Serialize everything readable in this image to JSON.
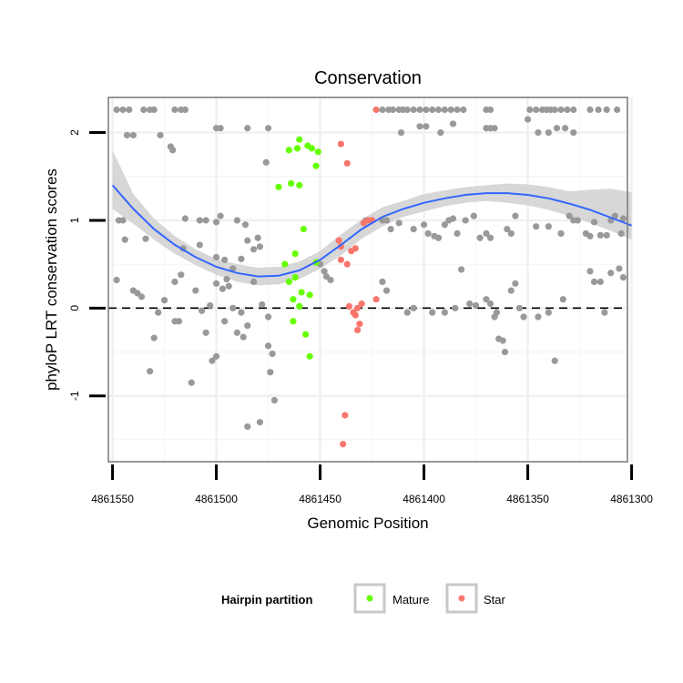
{
  "chart_data": {
    "type": "scatter",
    "title": "Conservation",
    "xlabel": "Genomic Position",
    "ylabel": "phyloP LRT conservation scores",
    "x_reversed": true,
    "xlim": [
      4861552,
      4861302
    ],
    "ylim": [
      -1.75,
      2.4
    ],
    "x_ticks": [
      4861550,
      4861500,
      4861450,
      4861400,
      4861350,
      4861300
    ],
    "x_tick_labels": [
      "4861550",
      "4861500",
      "4861450",
      "4861400",
      "4861350",
      "4861300"
    ],
    "y_ticks": [
      -1,
      0,
      1,
      2
    ],
    "y_tick_labels": [
      "-1",
      "0",
      "1",
      "2"
    ],
    "grid": true,
    "hline": {
      "y": 0,
      "style": "dashed",
      "color": "#000000"
    },
    "legend": {
      "title": "Hairpin partition",
      "position": "bottom",
      "entries": [
        {
          "name": "Mature",
          "color": "#66ff00"
        },
        {
          "name": "Star",
          "color": "#f8766d"
        }
      ]
    },
    "colors": {
      "other": "#999999",
      "mature": "#66ff00",
      "star": "#f8766d",
      "smooth": "#3366ff",
      "band": "#d3d3d3"
    },
    "series": [
      {
        "group": "other",
        "points": [
          [
            4861548,
            2.26
          ],
          [
            4861545,
            2.26
          ],
          [
            4861542,
            2.26
          ],
          [
            4861535,
            2.26
          ],
          [
            4861532,
            2.26
          ],
          [
            4861530,
            2.26
          ],
          [
            4861520,
            2.26
          ],
          [
            4861517,
            2.26
          ],
          [
            4861515,
            2.26
          ],
          [
            4861543,
            1.97
          ],
          [
            4861540,
            1.97
          ],
          [
            4861527,
            1.97
          ],
          [
            4861500,
            2.05
          ],
          [
            4861498,
            2.05
          ],
          [
            4861485,
            2.05
          ],
          [
            4861475,
            2.05
          ],
          [
            4861522,
            1.84
          ],
          [
            4861521,
            1.8
          ],
          [
            4861476,
            1.66
          ],
          [
            4861547,
            1.0
          ],
          [
            4861545,
            1.0
          ],
          [
            4861544,
            0.78
          ],
          [
            4861534,
            0.79
          ],
          [
            4861515,
            1.02
          ],
          [
            4861508,
            1.0
          ],
          [
            4861505,
            1.0
          ],
          [
            4861500,
            0.98
          ],
          [
            4861498,
            1.05
          ],
          [
            4861490,
            1.0
          ],
          [
            4861486,
            0.95
          ],
          [
            4861485,
            0.77
          ],
          [
            4861482,
            0.67
          ],
          [
            4861480,
            0.8
          ],
          [
            4861479,
            0.7
          ],
          [
            4861508,
            0.72
          ],
          [
            4861516,
            0.68
          ],
          [
            4861500,
            0.58
          ],
          [
            4861496,
            0.55
          ],
          [
            4861492,
            0.45
          ],
          [
            4861488,
            0.56
          ],
          [
            4861548,
            0.32
          ],
          [
            4861540,
            0.2
          ],
          [
            4861538,
            0.17
          ],
          [
            4861536,
            0.13
          ],
          [
            4861528,
            -0.05
          ],
          [
            4861525,
            0.09
          ],
          [
            4861520,
            0.3
          ],
          [
            4861517,
            0.38
          ],
          [
            4861510,
            0.2
          ],
          [
            4861507,
            -0.03
          ],
          [
            4861503,
            0.03
          ],
          [
            4861500,
            0.28
          ],
          [
            4861497,
            0.22
          ],
          [
            4861495,
            0.33
          ],
          [
            4861494,
            0.25
          ],
          [
            4861492,
            0.0
          ],
          [
            4861488,
            -0.05
          ],
          [
            4861485,
            -0.2
          ],
          [
            4861482,
            0.3
          ],
          [
            4861478,
            0.04
          ],
          [
            4861475,
            -0.1
          ],
          [
            4861530,
            -0.34
          ],
          [
            4861532,
            -0.72
          ],
          [
            4861520,
            -0.15
          ],
          [
            4861518,
            -0.15
          ],
          [
            4861505,
            -0.28
          ],
          [
            4861502,
            -0.6
          ],
          [
            4861500,
            -0.55
          ],
          [
            4861496,
            -0.15
          ],
          [
            4861512,
            -0.85
          ],
          [
            4861490,
            -0.28
          ],
          [
            4861487,
            -0.33
          ],
          [
            4861485,
            -1.35
          ],
          [
            4861479,
            -1.3
          ],
          [
            4861475,
            -0.43
          ],
          [
            4861474,
            -0.73
          ],
          [
            4861473,
            -0.52
          ],
          [
            4861472,
            -1.05
          ],
          [
            4861450,
            0.5
          ],
          [
            4861448,
            0.42
          ],
          [
            4861447,
            0.36
          ],
          [
            4861445,
            0.32
          ],
          [
            4861420,
            2.26
          ],
          [
            4861417,
            2.26
          ],
          [
            4861415,
            2.26
          ],
          [
            4861412,
            2.26
          ],
          [
            4861410,
            2.26
          ],
          [
            4861408,
            2.26
          ],
          [
            4861405,
            2.26
          ],
          [
            4861402,
            2.26
          ],
          [
            4861399,
            2.26
          ],
          [
            4861396,
            2.26
          ],
          [
            4861393,
            2.26
          ],
          [
            4861390,
            2.26
          ],
          [
            4861387,
            2.26
          ],
          [
            4861384,
            2.26
          ],
          [
            4861381,
            2.26
          ],
          [
            4861370,
            2.26
          ],
          [
            4861368,
            2.26
          ],
          [
            4861349,
            2.26
          ],
          [
            4861346,
            2.26
          ],
          [
            4861343,
            2.26
          ],
          [
            4861341,
            2.26
          ],
          [
            4861339,
            2.26
          ],
          [
            4861337,
            2.26
          ],
          [
            4861334,
            2.26
          ],
          [
            4861331,
            2.26
          ],
          [
            4861328,
            2.26
          ],
          [
            4861320,
            2.26
          ],
          [
            4861316,
            2.26
          ],
          [
            4861312,
            2.26
          ],
          [
            4861307,
            2.26
          ],
          [
            4861411,
            2.0
          ],
          [
            4861402,
            2.07
          ],
          [
            4861399,
            2.07
          ],
          [
            4861392,
            2.0
          ],
          [
            4861386,
            2.1
          ],
          [
            4861370,
            2.05
          ],
          [
            4861368,
            2.05
          ],
          [
            4861366,
            2.05
          ],
          [
            4861350,
            2.15
          ],
          [
            4861345,
            2.0
          ],
          [
            4861340,
            2.0
          ],
          [
            4861336,
            2.05
          ],
          [
            4861332,
            2.05
          ],
          [
            4861328,
            2.0
          ],
          [
            4861428,
            1.0
          ],
          [
            4861425,
            1.0
          ],
          [
            4861420,
            1.0
          ],
          [
            4861418,
            1.0
          ],
          [
            4861416,
            0.9
          ],
          [
            4861412,
            0.97
          ],
          [
            4861405,
            0.9
          ],
          [
            4861400,
            0.95
          ],
          [
            4861398,
            0.85
          ],
          [
            4861395,
            0.82
          ],
          [
            4861393,
            0.8
          ],
          [
            4861390,
            0.95
          ],
          [
            4861388,
            1.0
          ],
          [
            4861386,
            1.02
          ],
          [
            4861384,
            0.85
          ],
          [
            4861380,
            1.0
          ],
          [
            4861376,
            1.05
          ],
          [
            4861373,
            0.8
          ],
          [
            4861370,
            0.85
          ],
          [
            4861368,
            0.8
          ],
          [
            4861360,
            0.9
          ],
          [
            4861358,
            0.85
          ],
          [
            4861356,
            1.05
          ],
          [
            4861346,
            0.93
          ],
          [
            4861340,
            0.93
          ],
          [
            4861334,
            0.85
          ],
          [
            4861330,
            1.05
          ],
          [
            4861328,
            1.0
          ],
          [
            4861326,
            1.0
          ],
          [
            4861322,
            0.85
          ],
          [
            4861320,
            0.82
          ],
          [
            4861318,
            0.98
          ],
          [
            4861315,
            0.83
          ],
          [
            4861312,
            0.83
          ],
          [
            4861310,
            1.0
          ],
          [
            4861308,
            1.05
          ],
          [
            4861305,
            0.85
          ],
          [
            4861304,
            1.02
          ],
          [
            4861306,
            0.45
          ],
          [
            4861304,
            0.35
          ],
          [
            4861310,
            0.4
          ],
          [
            4861420,
            0.3
          ],
          [
            4861418,
            0.2
          ],
          [
            4861408,
            -0.05
          ],
          [
            4861405,
            0.0
          ],
          [
            4861396,
            -0.05
          ],
          [
            4861390,
            -0.05
          ],
          [
            4861385,
            0.0
          ],
          [
            4861382,
            0.44
          ],
          [
            4861378,
            0.05
          ],
          [
            4861375,
            0.03
          ],
          [
            4861370,
            0.1
          ],
          [
            4861368,
            0.05
          ],
          [
            4861366,
            -0.1
          ],
          [
            4861365,
            -0.05
          ],
          [
            4861364,
            -0.35
          ],
          [
            4861362,
            -0.37
          ],
          [
            4861361,
            -0.5
          ],
          [
            4861358,
            0.2
          ],
          [
            4861356,
            0.28
          ],
          [
            4861354,
            0.0
          ],
          [
            4861352,
            -0.1
          ],
          [
            4861345,
            -0.1
          ],
          [
            4861340,
            -0.05
          ],
          [
            4861337,
            -0.6
          ],
          [
            4861333,
            0.1
          ],
          [
            4861320,
            0.42
          ],
          [
            4861318,
            0.3
          ],
          [
            4861315,
            0.3
          ],
          [
            4861313,
            -0.05
          ]
        ]
      },
      {
        "group": "mature",
        "points": [
          [
            4861464,
            1.42
          ],
          [
            4861465,
            1.8
          ],
          [
            4861461,
            1.82
          ],
          [
            4861460,
            1.92
          ],
          [
            4861456,
            1.85
          ],
          [
            4861454,
            1.82
          ],
          [
            4861452,
            1.62
          ],
          [
            4861451,
            1.78
          ],
          [
            4861460,
            1.4
          ],
          [
            4861470,
            1.38
          ],
          [
            4861458,
            0.9
          ],
          [
            4861462,
            0.62
          ],
          [
            4861467,
            0.5
          ],
          [
            4861465,
            0.3
          ],
          [
            4861462,
            0.35
          ],
          [
            4861463,
            0.1
          ],
          [
            4861459,
            0.18
          ],
          [
            4861455,
            0.15
          ],
          [
            4861452,
            0.52
          ],
          [
            4861460,
            0.02
          ],
          [
            4861463,
            -0.15
          ],
          [
            4861457,
            -0.3
          ],
          [
            4861455,
            -0.55
          ]
        ]
      },
      {
        "group": "star",
        "points": [
          [
            4861423,
            2.26
          ],
          [
            4861440,
            1.87
          ],
          [
            4861437,
            1.65
          ],
          [
            4861441,
            0.77
          ],
          [
            4861440,
            0.7
          ],
          [
            4861435,
            0.65
          ],
          [
            4861433,
            0.68
          ],
          [
            4861437,
            0.5
          ],
          [
            4861440,
            0.55
          ],
          [
            4861429,
            0.97
          ],
          [
            4861427,
            1.0
          ],
          [
            4861425,
            1.0
          ],
          [
            4861436,
            0.02
          ],
          [
            4861434,
            -0.05
          ],
          [
            4861433,
            -0.08
          ],
          [
            4861432,
            0.0
          ],
          [
            4861430,
            0.05
          ],
          [
            4861423,
            0.1
          ],
          [
            4861431,
            -0.18
          ],
          [
            4861432,
            -0.25
          ],
          [
            4861438,
            -1.22
          ],
          [
            4861439,
            -1.55
          ]
        ]
      }
    ],
    "smooth": {
      "x": [
        4861550,
        4861540,
        4861530,
        4861520,
        4861510,
        4861500,
        4861490,
        4861480,
        4861470,
        4861460,
        4861450,
        4861440,
        4861430,
        4861420,
        4861410,
        4861400,
        4861390,
        4861380,
        4861370,
        4861360,
        4861350,
        4861340,
        4861330,
        4861320,
        4861310,
        4861300
      ],
      "y": [
        1.4,
        1.13,
        0.9,
        0.72,
        0.58,
        0.47,
        0.4,
        0.36,
        0.37,
        0.43,
        0.55,
        0.72,
        0.9,
        1.04,
        1.13,
        1.2,
        1.25,
        1.29,
        1.31,
        1.31,
        1.29,
        1.25,
        1.19,
        1.12,
        1.03,
        0.94
      ],
      "lower": [
        1.13,
        0.96,
        0.78,
        0.62,
        0.49,
        0.38,
        0.3,
        0.26,
        0.27,
        0.33,
        0.45,
        0.6,
        0.79,
        0.93,
        1.04,
        1.1,
        1.16,
        1.2,
        1.22,
        1.2,
        1.17,
        1.12,
        1.05,
        0.97,
        0.88,
        0.78
      ],
      "upper": [
        1.8,
        1.3,
        1.02,
        0.82,
        0.67,
        0.56,
        0.5,
        0.46,
        0.47,
        0.53,
        0.65,
        0.84,
        1.01,
        1.15,
        1.22,
        1.3,
        1.34,
        1.38,
        1.4,
        1.42,
        1.41,
        1.38,
        1.33,
        1.35,
        1.36,
        1.32
      ]
    }
  }
}
